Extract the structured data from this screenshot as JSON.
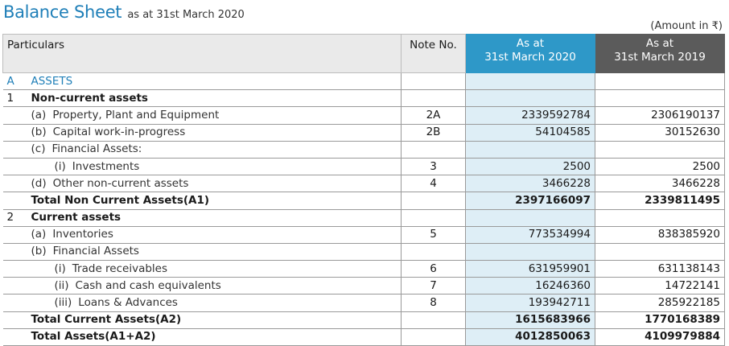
{
  "title": "Balance Sheet",
  "subtitle": "as at 31st March 2020",
  "amount_note": "(Amount in ₹)",
  "headers": {
    "particulars": "Particulars",
    "note_no": "Note No.",
    "current_line1": "As at",
    "current_line2": "31st March 2020",
    "previous_line1": "As at",
    "previous_line2": "31st March 2019"
  },
  "rows": [
    {
      "idx": "A",
      "label": "ASSETS",
      "note": "",
      "cur": "",
      "prev": ""
    },
    {
      "idx": "1",
      "label": "Non-current assets",
      "note": "",
      "cur": "",
      "prev": ""
    },
    {
      "idx": "",
      "sub": "(a)",
      "label": "Property, Plant and Equipment",
      "note": "2A",
      "cur": "2339592784",
      "prev": "2306190137"
    },
    {
      "idx": "",
      "sub": "(b)",
      "label": "Capital work-in-progress",
      "note": "2B",
      "cur": "54104585",
      "prev": "30152630"
    },
    {
      "idx": "",
      "sub": "(c)",
      "label": "Financial Assets:",
      "note": "",
      "cur": "",
      "prev": ""
    },
    {
      "idx": "",
      "sub": "(i)",
      "label": "Investments",
      "note": "3",
      "cur": "2500",
      "prev": "2500"
    },
    {
      "idx": "",
      "sub": "(d)",
      "label": "Other non-current assets",
      "note": "4",
      "cur": "3466228",
      "prev": "3466228"
    },
    {
      "idx": "",
      "label": "Total Non Current Assets(A1)",
      "note": "",
      "cur": "2397166097",
      "prev": "2339811495"
    },
    {
      "idx": "2",
      "label": "Current assets",
      "note": "",
      "cur": "",
      "prev": ""
    },
    {
      "idx": "",
      "sub": "(a)",
      "label": "Inventories",
      "note": "5",
      "cur": "773534994",
      "prev": "838385920"
    },
    {
      "idx": "",
      "sub": "(b)",
      "label": "Financial Assets",
      "note": "",
      "cur": "",
      "prev": ""
    },
    {
      "idx": "",
      "sub": "(i)",
      "label": "Trade receivables",
      "note": "6",
      "cur": "631959901",
      "prev": "631138143"
    },
    {
      "idx": "",
      "sub": "(ii)",
      "label": "Cash and cash equivalents",
      "note": "7",
      "cur": "16246360",
      "prev": "14722141"
    },
    {
      "idx": "",
      "sub": "(iii)",
      "label": "Loans & Advances",
      "note": "8",
      "cur": "193942711",
      "prev": "285922185"
    },
    {
      "idx": "",
      "label": "Total Current Assets(A2)",
      "note": "",
      "cur": "1615683966",
      "prev": "1770168389"
    },
    {
      "idx": "",
      "label": "Total Assets(A1+A2)",
      "note": "",
      "cur": "4012850063",
      "prev": "4109979884"
    }
  ],
  "colors": {
    "title": "#1f7fb8",
    "current_header": "#2e98c8",
    "previous_header": "#5b5b5b",
    "current_column": "#deeef6"
  }
}
